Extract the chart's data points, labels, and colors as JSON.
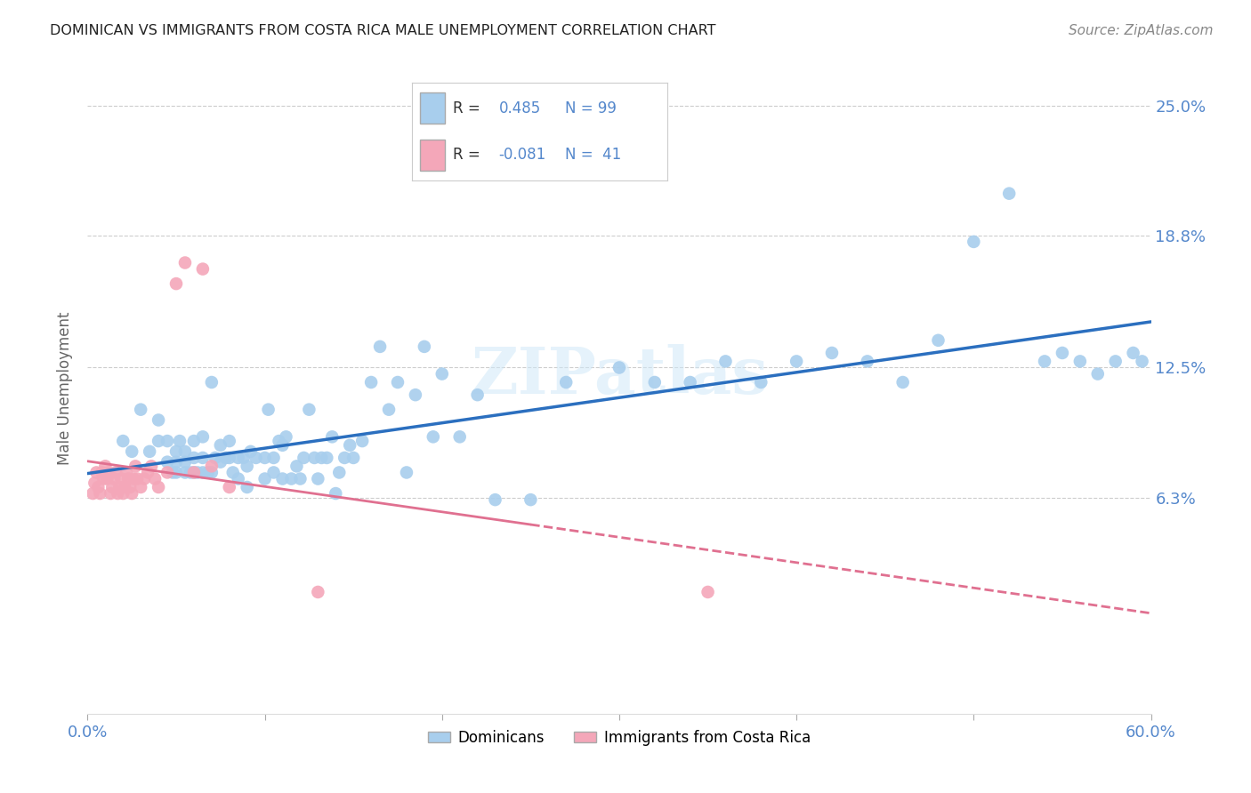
{
  "title": "DOMINICAN VS IMMIGRANTS FROM COSTA RICA MALE UNEMPLOYMENT CORRELATION CHART",
  "source": "Source: ZipAtlas.com",
  "ylabel": "Male Unemployment",
  "xlim": [
    0.0,
    0.6
  ],
  "ylim": [
    -0.04,
    0.27
  ],
  "yticks": [
    0.063,
    0.125,
    0.188,
    0.25
  ],
  "ytick_labels": [
    "6.3%",
    "12.5%",
    "18.8%",
    "25.0%"
  ],
  "blue_color": "#A8CEED",
  "pink_color": "#F4A7B9",
  "blue_line_color": "#2B6FBF",
  "pink_line_color": "#E07090",
  "axis_label_color": "#5588CC",
  "background_color": "#FFFFFF",
  "grid_color": "#C8C8C8",
  "legend_label1": "Dominicans",
  "legend_label2": "Immigrants from Costa Rica",
  "blue_scatter_x": [
    0.02,
    0.025,
    0.03,
    0.035,
    0.04,
    0.04,
    0.045,
    0.045,
    0.048,
    0.05,
    0.05,
    0.05,
    0.052,
    0.055,
    0.055,
    0.055,
    0.058,
    0.06,
    0.06,
    0.06,
    0.062,
    0.065,
    0.065,
    0.065,
    0.068,
    0.07,
    0.07,
    0.072,
    0.075,
    0.075,
    0.078,
    0.08,
    0.08,
    0.082,
    0.085,
    0.085,
    0.088,
    0.09,
    0.09,
    0.092,
    0.095,
    0.1,
    0.1,
    0.102,
    0.105,
    0.105,
    0.108,
    0.11,
    0.11,
    0.112,
    0.115,
    0.118,
    0.12,
    0.122,
    0.125,
    0.128,
    0.13,
    0.132,
    0.135,
    0.138,
    0.14,
    0.142,
    0.145,
    0.148,
    0.15,
    0.155,
    0.16,
    0.165,
    0.17,
    0.175,
    0.18,
    0.185,
    0.19,
    0.195,
    0.2,
    0.21,
    0.22,
    0.23,
    0.25,
    0.27,
    0.3,
    0.32,
    0.34,
    0.36,
    0.38,
    0.4,
    0.42,
    0.44,
    0.46,
    0.48,
    0.5,
    0.52,
    0.54,
    0.55,
    0.56,
    0.57,
    0.58,
    0.59,
    0.595
  ],
  "blue_scatter_y": [
    0.09,
    0.085,
    0.105,
    0.085,
    0.09,
    0.1,
    0.08,
    0.09,
    0.075,
    0.075,
    0.08,
    0.085,
    0.09,
    0.075,
    0.08,
    0.085,
    0.075,
    0.075,
    0.082,
    0.09,
    0.075,
    0.075,
    0.082,
    0.092,
    0.075,
    0.075,
    0.118,
    0.082,
    0.08,
    0.088,
    0.082,
    0.082,
    0.09,
    0.075,
    0.072,
    0.082,
    0.082,
    0.068,
    0.078,
    0.085,
    0.082,
    0.072,
    0.082,
    0.105,
    0.075,
    0.082,
    0.09,
    0.072,
    0.088,
    0.092,
    0.072,
    0.078,
    0.072,
    0.082,
    0.105,
    0.082,
    0.072,
    0.082,
    0.082,
    0.092,
    0.065,
    0.075,
    0.082,
    0.088,
    0.082,
    0.09,
    0.118,
    0.135,
    0.105,
    0.118,
    0.075,
    0.112,
    0.135,
    0.092,
    0.122,
    0.092,
    0.112,
    0.062,
    0.062,
    0.118,
    0.125,
    0.118,
    0.118,
    0.128,
    0.118,
    0.128,
    0.132,
    0.128,
    0.118,
    0.138,
    0.185,
    0.208,
    0.128,
    0.132,
    0.128,
    0.122,
    0.128,
    0.132,
    0.128
  ],
  "pink_scatter_x": [
    0.003,
    0.004,
    0.005,
    0.006,
    0.007,
    0.008,
    0.009,
    0.01,
    0.011,
    0.012,
    0.013,
    0.014,
    0.015,
    0.016,
    0.017,
    0.018,
    0.019,
    0.02,
    0.021,
    0.022,
    0.023,
    0.024,
    0.025,
    0.026,
    0.027,
    0.028,
    0.03,
    0.032,
    0.034,
    0.036,
    0.038,
    0.04,
    0.045,
    0.05,
    0.055,
    0.06,
    0.065,
    0.07,
    0.08,
    0.13,
    0.35
  ],
  "pink_scatter_y": [
    0.065,
    0.07,
    0.075,
    0.068,
    0.065,
    0.075,
    0.072,
    0.078,
    0.072,
    0.075,
    0.065,
    0.068,
    0.072,
    0.075,
    0.065,
    0.068,
    0.072,
    0.065,
    0.068,
    0.075,
    0.072,
    0.068,
    0.065,
    0.072,
    0.078,
    0.072,
    0.068,
    0.072,
    0.075,
    0.078,
    0.072,
    0.068,
    0.075,
    0.165,
    0.175,
    0.075,
    0.172,
    0.078,
    0.068,
    0.018,
    0.018
  ],
  "watermark": "ZIPatlas",
  "figsize": [
    14.06,
    8.92
  ],
  "dpi": 100
}
